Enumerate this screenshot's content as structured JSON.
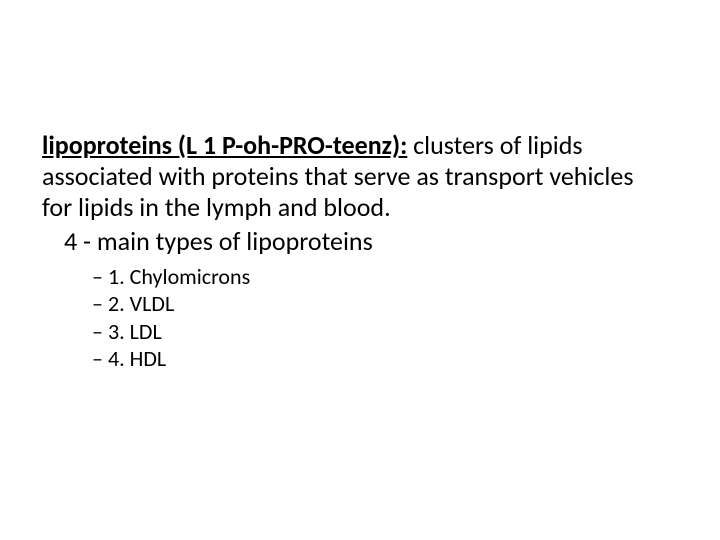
{
  "definition": {
    "term": "lipoproteins (L 1 P-oh-PRO-teenz):",
    "text": " clusters of lipids associated with proteins that serve as transport vehicles for lipids in the lymph and blood."
  },
  "subtitle": "4 - main types of lipoproteins",
  "list": {
    "items": [
      "1.  Chylomicrons",
      "2. VLDL",
      "3.  LDL",
      "4.  HDL"
    ]
  },
  "style": {
    "text_color": "#000000",
    "background_color": "#ffffff",
    "body_fontsize": 26,
    "list_fontsize": 22,
    "dash_glyph": "–"
  }
}
